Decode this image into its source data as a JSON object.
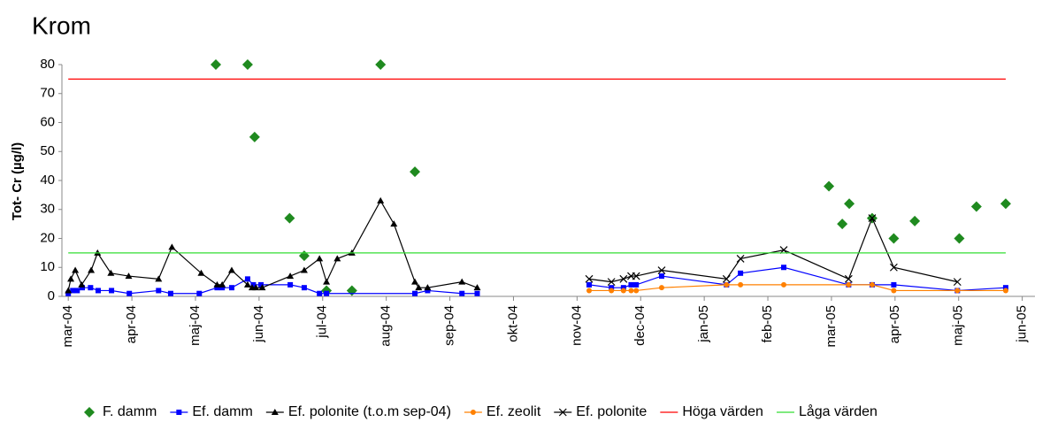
{
  "chart_data": {
    "type": "line",
    "title": "Krom",
    "y_label": "Tot- Cr (µg/l)",
    "xlim": [
      -0.1,
      15.2
    ],
    "xticks": [
      {
        "value": 0,
        "label": "mar-04"
      },
      {
        "value": 1,
        "label": "apr-04"
      },
      {
        "value": 2,
        "label": "maj-04"
      },
      {
        "value": 3,
        "label": "jun-04"
      },
      {
        "value": 4,
        "label": "jul-04"
      },
      {
        "value": 5,
        "label": "aug-04"
      },
      {
        "value": 6,
        "label": "sep-04"
      },
      {
        "value": 7,
        "label": "okt-04"
      },
      {
        "value": 8,
        "label": "nov-04"
      },
      {
        "value": 9,
        "label": "dec-04"
      },
      {
        "value": 10,
        "label": "jan-05"
      },
      {
        "value": 11,
        "label": "feb-05"
      },
      {
        "value": 12,
        "label": "mar-05"
      },
      {
        "value": 13,
        "label": "apr-05"
      },
      {
        "value": 14,
        "label": "maj-05"
      },
      {
        "value": 15,
        "label": "jun-05"
      }
    ],
    "ylim": [
      0,
      80
    ],
    "yticks": [
      0,
      10,
      20,
      30,
      40,
      50,
      60,
      70,
      80
    ],
    "grid": false,
    "legend": "bottom",
    "series": [
      {
        "name": "F. damm",
        "color": "#1f8a1f",
        "marker": "diamond",
        "line": false,
        "x": [
          2.32,
          2.82,
          2.93,
          3.48,
          3.71,
          4.06,
          4.46,
          4.91,
          5.45,
          11.96,
          12.17,
          12.28,
          12.64,
          12.98,
          13.31,
          14.01,
          14.28,
          14.74
        ],
        "values": [
          80,
          80,
          55,
          27,
          14,
          2,
          2,
          80,
          43,
          38,
          25,
          32,
          27,
          20,
          26,
          20,
          31,
          32
        ]
      },
      {
        "name": "Ef. damm",
        "color": "#0000ff",
        "marker": "square",
        "line": true,
        "x": [
          0,
          0.07,
          0.14,
          0.22,
          0.35,
          0.47,
          0.68,
          0.96,
          1.42,
          1.61,
          2.06,
          2.34,
          2.42,
          2.57,
          2.82,
          2.91,
          3.03,
          3.49,
          3.71,
          3.95,
          4.06,
          5.45,
          5.65,
          6.19,
          6.43,
          null,
          8.19,
          8.54,
          8.73,
          8.85,
          8.93,
          9.33,
          10.35,
          10.57,
          11.25,
          12.27,
          12.64,
          12.98,
          13.98,
          14.74
        ],
        "values": [
          1,
          2,
          2,
          3,
          3,
          2,
          2,
          1,
          2,
          1,
          1,
          3,
          3,
          3,
          6,
          4,
          4,
          4,
          3,
          1,
          1,
          1,
          2,
          1,
          1,
          null,
          4,
          3,
          3,
          4,
          4,
          7,
          4,
          8,
          10,
          4,
          4,
          4,
          2,
          3
        ]
      },
      {
        "name": "Ef. polonite (t.o.m sep-04)",
        "color": "#000000",
        "marker": "triangle",
        "line": true,
        "x": [
          0,
          0.04,
          0.11,
          0.21,
          0.36,
          0.46,
          0.67,
          0.95,
          1.42,
          1.63,
          2.09,
          2.34,
          2.42,
          2.57,
          2.82,
          2.89,
          2.95,
          3.05,
          3.49,
          3.71,
          3.95,
          4.06,
          4.23,
          4.46,
          4.91,
          5.12,
          5.45,
          5.51,
          5.65,
          6.19,
          6.43
        ],
        "values": [
          2,
          6,
          9,
          4,
          9,
          15,
          8,
          7,
          6,
          17,
          8,
          4,
          4,
          9,
          4,
          3,
          3,
          3,
          7,
          9,
          13,
          5,
          13,
          15,
          33,
          25,
          5,
          3,
          3,
          5,
          3
        ]
      },
      {
        "name": "Ef. zeolit",
        "color": "#ff8000",
        "marker": "circle",
        "line": true,
        "x": [
          8.19,
          8.54,
          8.73,
          8.85,
          8.93,
          9.33,
          10.35,
          10.57,
          11.25,
          12.27,
          12.64,
          12.98,
          13.98,
          14.74
        ],
        "values": [
          2,
          2,
          2,
          2,
          2,
          3,
          4,
          4,
          4,
          4,
          4,
          2,
          2,
          2
        ]
      },
      {
        "name": "Ef. polonite",
        "color": "#000000",
        "marker": "cross",
        "line": true,
        "x": [
          8.19,
          8.54,
          8.73,
          8.85,
          8.93,
          9.33,
          10.35,
          10.57,
          11.25,
          12.27,
          12.64,
          12.98,
          13.98
        ],
        "values": [
          6,
          5,
          6,
          7,
          7,
          9,
          6,
          13,
          16,
          6,
          27,
          10,
          5
        ]
      },
      {
        "name": "Höga värden",
        "color": "#ff0000",
        "marker": "none",
        "line": true,
        "x": [
          0,
          14.74
        ],
        "values": [
          75,
          75
        ]
      },
      {
        "name": "Låga värden",
        "color": "#33dd33",
        "marker": "none",
        "line": true,
        "x": [
          0,
          14.74
        ],
        "values": [
          15,
          15
        ]
      }
    ]
  }
}
